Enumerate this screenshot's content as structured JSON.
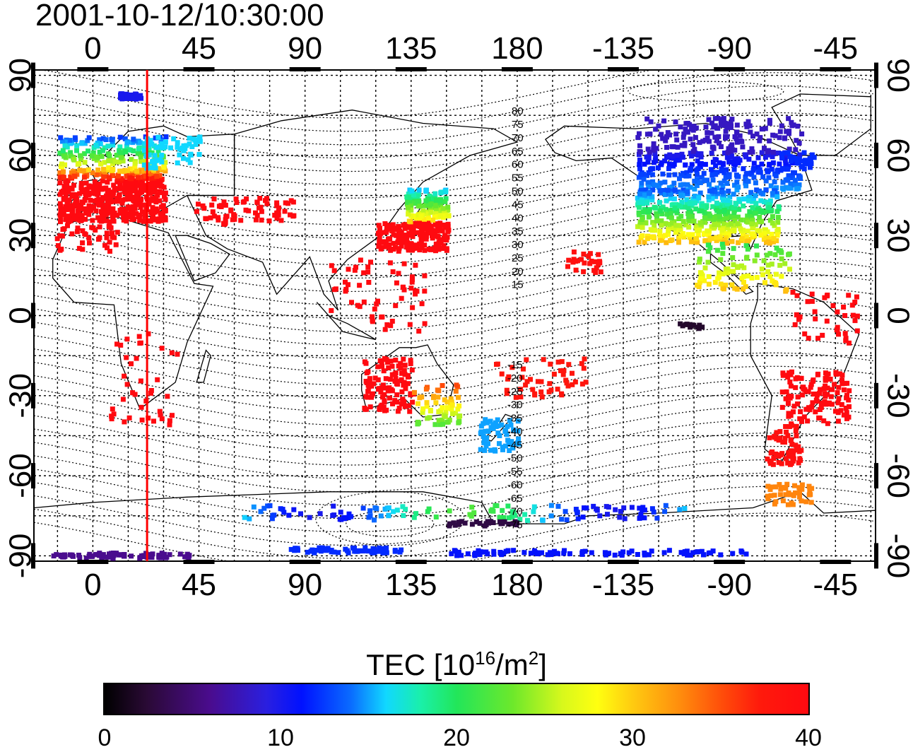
{
  "title": "2001-10-12/10:30:00",
  "map": {
    "lon_ticks_top": [
      "0",
      "45",
      "90",
      "135",
      "180",
      "-135",
      "-90",
      "-45"
    ],
    "lon_ticks_bottom": [
      "0",
      "45",
      "90",
      "135",
      "180",
      "-135",
      "-90",
      "-45"
    ],
    "lat_ticks_left": [
      "90",
      "60",
      "30",
      "0",
      "-30",
      "-60",
      "-90"
    ],
    "lat_ticks_right": [
      "90",
      "60",
      "30",
      "0",
      "-30",
      "-60",
      "-90"
    ],
    "magnetic_lat_labels_north": [
      "80",
      "75",
      "70",
      "65",
      "60",
      "55",
      "50",
      "45",
      "40",
      "35",
      "30",
      "25",
      "20",
      "15"
    ],
    "magnetic_lat_labels_south": [
      "-15",
      "-20",
      "-25",
      "-30",
      "-35",
      "-40",
      "-45",
      "-50",
      "-55",
      "-60",
      "-65",
      "-70",
      "-75"
    ],
    "marker_color": "#ff0000"
  },
  "colorbar": {
    "label_main": "TEC  [10",
    "label_exp1": "16",
    "label_mid": "/m",
    "label_exp2": "2",
    "label_end": "]",
    "ticks": [
      "0",
      "10",
      "20",
      "30",
      "40"
    ],
    "min": 0,
    "max": 40
  }
}
